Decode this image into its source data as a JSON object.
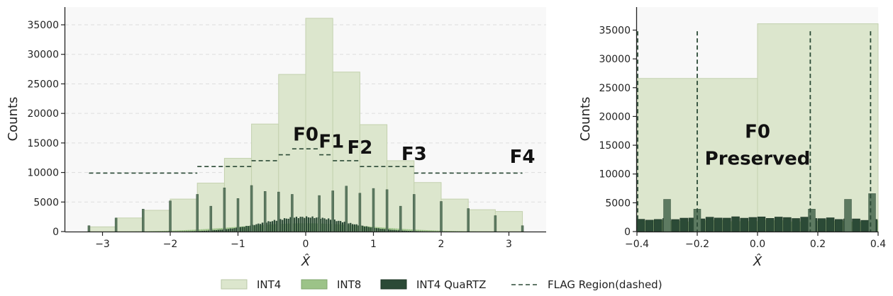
{
  "legend": {
    "items": [
      {
        "label": "INT4",
        "color": "#dce6cd"
      },
      {
        "label": "INT8",
        "color": "#9cc388"
      },
      {
        "label": "INT4 QuaRTZ",
        "color": "#2b4a36"
      },
      {
        "label": "FLAG Region(dashed)",
        "color": "#2b4a36"
      }
    ]
  },
  "chart_data": [
    {
      "type": "bar",
      "xlabel": "X̂",
      "ylabel": "Counts",
      "xlim": [
        -3.55,
        3.55
      ],
      "ylim": [
        0,
        38000
      ],
      "grid": "y-dashed",
      "xticks": [
        -3,
        -2,
        -1,
        0,
        1,
        2,
        3
      ],
      "yticks": [
        0,
        5000,
        10000,
        15000,
        20000,
        25000,
        30000,
        35000
      ],
      "int4_bins": {
        "edges": [
          -3.2,
          -2.8,
          -2.4,
          -2.0,
          -1.6,
          -1.2,
          -0.8,
          -0.4,
          0.0,
          0.4,
          0.8,
          1.2,
          1.6,
          2.0,
          2.4,
          2.8,
          3.2
        ],
        "counts": [
          800,
          2300,
          3600,
          5500,
          8200,
          12400,
          18200,
          26600,
          36100,
          27000,
          18100,
          12000,
          8300,
          5500,
          3700,
          3400
        ]
      },
      "quartz_spikes": {
        "x": [
          -3.2,
          -2.8,
          -2.4,
          -2.0,
          -1.6,
          -1.4,
          -1.2,
          -1.0,
          -0.8,
          -0.6,
          -0.4,
          -0.2,
          0.2,
          0.4,
          0.6,
          0.8,
          1.0,
          1.2,
          1.4,
          1.6,
          2.0,
          2.4,
          2.8,
          3.2
        ],
        "values": [
          1000,
          2300,
          3800,
          5200,
          6300,
          4300,
          7400,
          5600,
          7800,
          6800,
          6700,
          6300,
          6100,
          6900,
          7700,
          6500,
          7300,
          7100,
          4300,
          6300,
          5100,
          3900,
          2700,
          1000
        ]
      },
      "series": [
        {
          "name": "INT4"
        },
        {
          "name": "INT8"
        },
        {
          "name": "INT4 QuaRTZ"
        },
        {
          "name": "FLAG Region(dashed)"
        }
      ],
      "flag_steps": [
        {
          "x0": -3.2,
          "x1": -1.6,
          "y": 9900
        },
        {
          "x0": -1.6,
          "x1": -0.8,
          "y": 11000
        },
        {
          "x0": -0.8,
          "x1": -0.4,
          "y": 12000
        },
        {
          "x0": -0.4,
          "x1": -0.2,
          "y": 13000
        },
        {
          "x0": -0.2,
          "x1": 0.2,
          "y": 14000
        },
        {
          "x0": 0.2,
          "x1": 0.4,
          "y": 13000
        },
        {
          "x0": 0.4,
          "x1": 0.8,
          "y": 12000
        },
        {
          "x0": 0.8,
          "x1": 1.6,
          "y": 11000
        },
        {
          "x0": 1.6,
          "x1": 3.2,
          "y": 9900
        }
      ],
      "annotations": [
        {
          "text": "F0",
          "x": 0.0,
          "y": 15400
        },
        {
          "text": "F1",
          "x": 0.38,
          "y": 14200
        },
        {
          "text": "F2",
          "x": 0.8,
          "y": 13200
        },
        {
          "text": "F3",
          "x": 1.6,
          "y": 12100
        },
        {
          "text": "F4",
          "x": 3.2,
          "y": 11600
        }
      ]
    },
    {
      "type": "bar",
      "xlabel": "X̂",
      "ylabel": "Counts",
      "xlim": [
        -0.4,
        0.4
      ],
      "ylim": [
        0,
        39000
      ],
      "xticks": [
        -0.4,
        -0.2,
        0.0,
        0.2,
        0.4
      ],
      "xtick_labels": [
        "−0.4",
        "−0.2",
        "0.0",
        "0.2",
        "0.4"
      ],
      "yticks": [
        0,
        5000,
        10000,
        15000,
        20000,
        25000,
        30000,
        35000
      ],
      "int4_bins": {
        "edges": [
          -0.4,
          0.0,
          0.4
        ],
        "counts": [
          26600,
          36100
        ]
      },
      "quartz_spikes": {
        "x": [
          -0.3,
          -0.2,
          0.18,
          0.3,
          0.38
        ],
        "values": [
          5600,
          3900,
          3900,
          5600,
          6600
        ]
      },
      "flag_lines_x": [
        -0.4,
        -0.2,
        0.175,
        0.375
      ],
      "flag_line_top": 34800,
      "annotations": [
        {
          "text": "F0",
          "x": 0.0,
          "y": 16300
        },
        {
          "text": "Preserved",
          "x": 0.0,
          "y": 11600
        }
      ]
    }
  ]
}
